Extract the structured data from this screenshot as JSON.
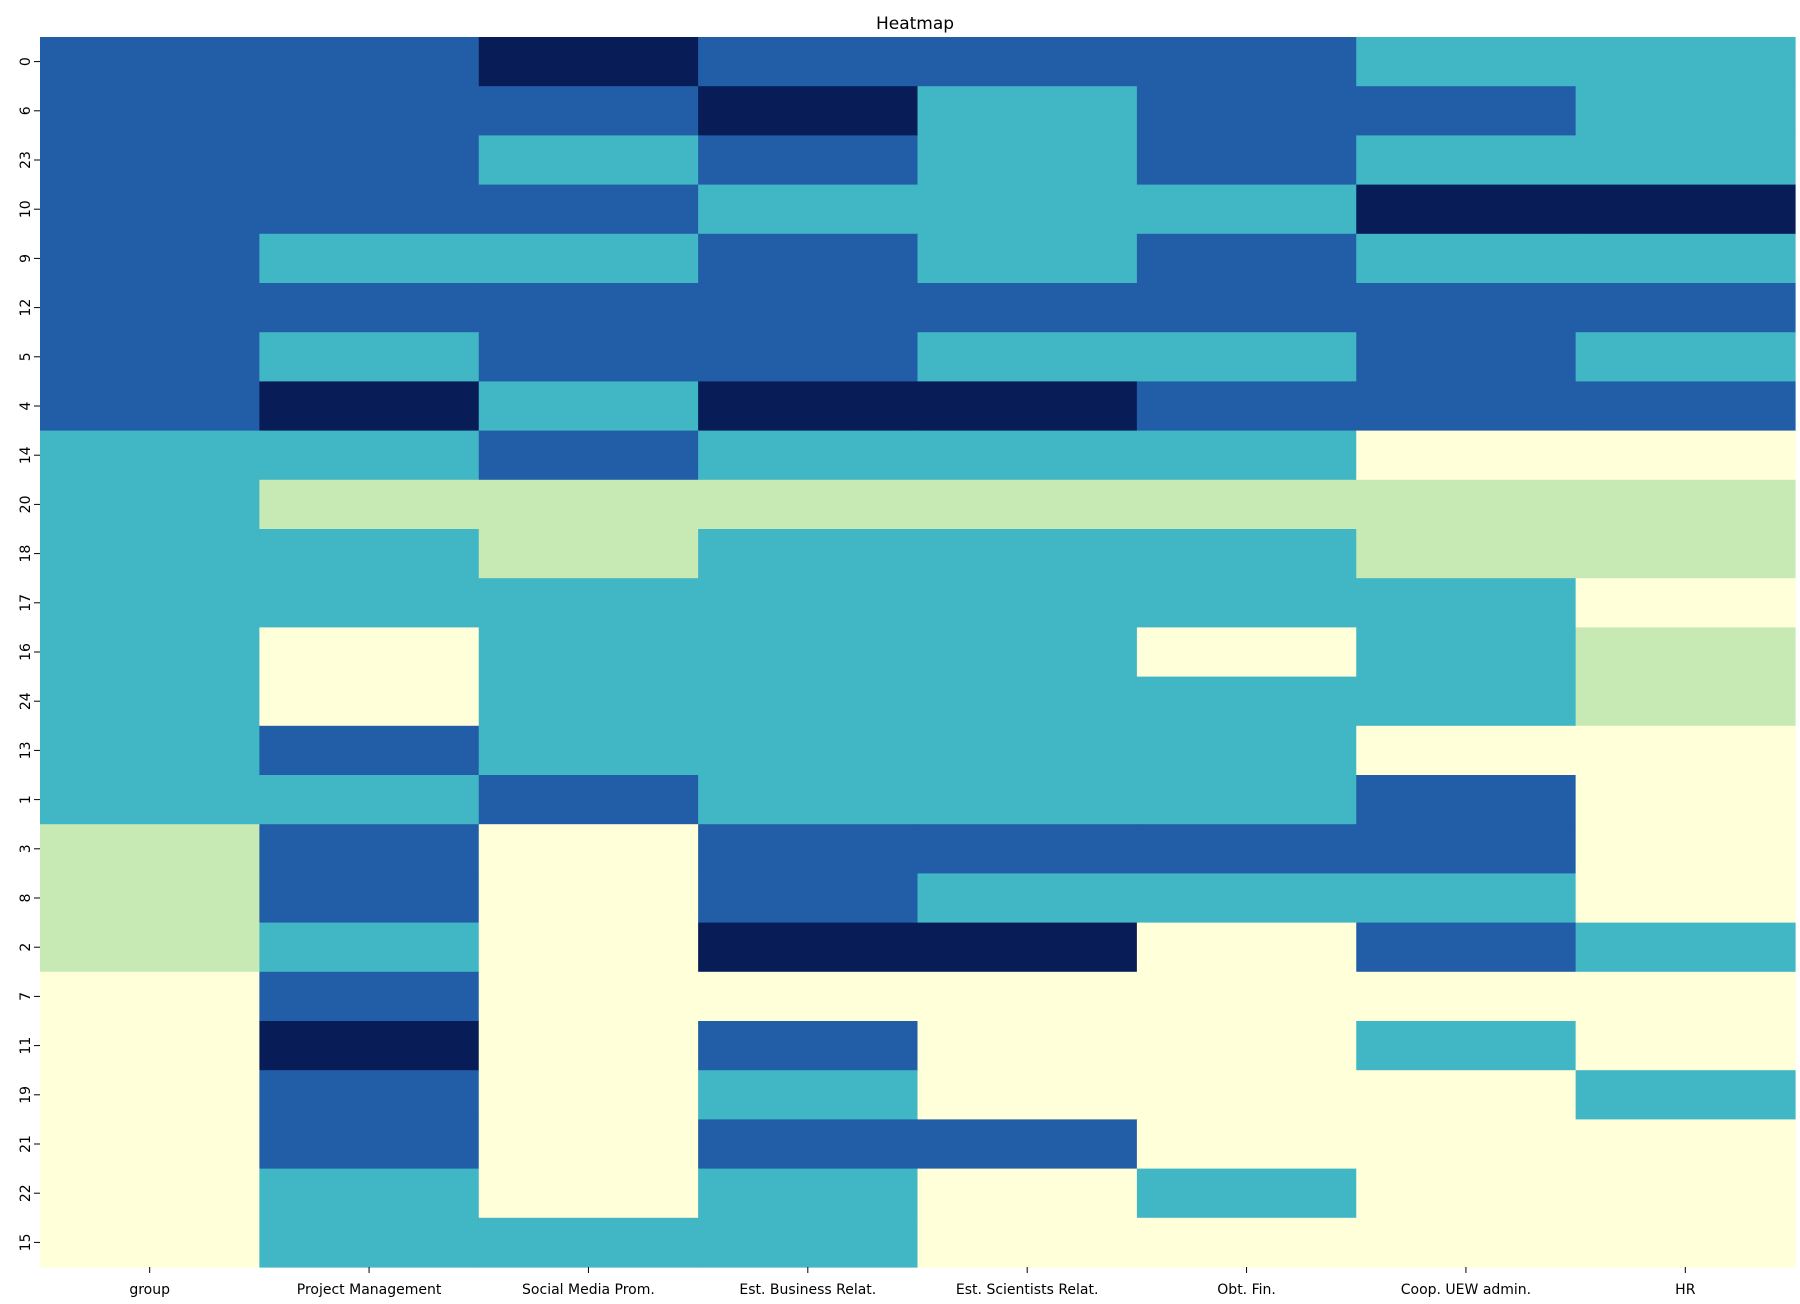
{
  "chart_data": {
    "type": "heatmap",
    "title": "Heatmap",
    "xlabel": "",
    "ylabel": "",
    "columns": [
      "group",
      "Project Management",
      "Social Media Prom.",
      "Est. Business Relat.",
      "Est. Scientists Relat.",
      "Obt. Fin.",
      "Coop. UEW admin.",
      "HR"
    ],
    "rows": [
      "0",
      "6",
      "23",
      "10",
      "9",
      "12",
      "5",
      "4",
      "14",
      "20",
      "18",
      "17",
      "16",
      "24",
      "13",
      "1",
      "3",
      "8",
      "2",
      "7",
      "11",
      "19",
      "21",
      "22",
      "15"
    ],
    "levels": [
      0,
      1,
      2,
      3,
      4
    ],
    "colors": [
      "#ffffd9",
      "#c7e9b4",
      "#41b6c4",
      "#225ea8",
      "#081d58"
    ],
    "colorbar": false,
    "values": [
      [
        3,
        3,
        4,
        3,
        3,
        3,
        2,
        2
      ],
      [
        3,
        3,
        3,
        4,
        2,
        3,
        3,
        2
      ],
      [
        3,
        3,
        2,
        3,
        2,
        3,
        2,
        2
      ],
      [
        3,
        3,
        3,
        2,
        2,
        2,
        4,
        4
      ],
      [
        3,
        2,
        2,
        3,
        2,
        3,
        2,
        2
      ],
      [
        3,
        3,
        3,
        3,
        3,
        3,
        3,
        3
      ],
      [
        3,
        2,
        3,
        3,
        2,
        2,
        3,
        2
      ],
      [
        3,
        4,
        2,
        4,
        4,
        3,
        3,
        3
      ],
      [
        2,
        2,
        3,
        2,
        2,
        2,
        0,
        0
      ],
      [
        2,
        1,
        1,
        1,
        1,
        1,
        1,
        1
      ],
      [
        2,
        2,
        1,
        2,
        2,
        2,
        1,
        1
      ],
      [
        2,
        2,
        2,
        2,
        2,
        2,
        2,
        0
      ],
      [
        2,
        0,
        2,
        2,
        2,
        0,
        2,
        1
      ],
      [
        2,
        0,
        2,
        2,
        2,
        2,
        2,
        1
      ],
      [
        2,
        3,
        2,
        2,
        2,
        2,
        0,
        0
      ],
      [
        2,
        2,
        3,
        2,
        2,
        2,
        3,
        0
      ],
      [
        1,
        3,
        0,
        3,
        3,
        3,
        3,
        0
      ],
      [
        1,
        3,
        0,
        3,
        2,
        2,
        2,
        0
      ],
      [
        1,
        2,
        0,
        4,
        4,
        0,
        3,
        2
      ],
      [
        0,
        3,
        0,
        0,
        0,
        0,
        0,
        0
      ],
      [
        0,
        4,
        0,
        3,
        0,
        0,
        2,
        0
      ],
      [
        0,
        3,
        0,
        2,
        0,
        0,
        0,
        2
      ],
      [
        0,
        3,
        0,
        3,
        3,
        0,
        0,
        0
      ],
      [
        0,
        2,
        0,
        2,
        0,
        2,
        0,
        0
      ],
      [
        0,
        2,
        2,
        2,
        0,
        0,
        0,
        0
      ]
    ]
  }
}
